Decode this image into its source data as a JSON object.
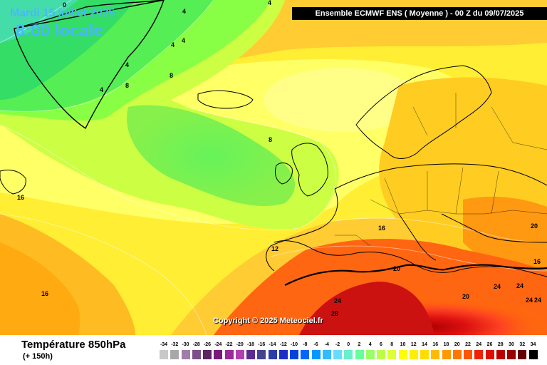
{
  "header": {
    "date": "Mardi 15 juillet 2025",
    "time": "8:00 locale",
    "title": "Ensemble ECMWF ENS  ( Moyenne )  -  00 Z du 09/07/2025"
  },
  "copyright": "Copyright © 2025 Meteociel.fr",
  "footer": {
    "parameter": "Température 850hPa",
    "lead": "(+ 150h)"
  },
  "contour_labels": [
    {
      "value": "0"
    },
    {
      "value": "4"
    },
    {
      "value": "4"
    },
    {
      "value": "4"
    },
    {
      "value": "4"
    },
    {
      "value": "4"
    },
    {
      "value": "4"
    },
    {
      "value": "8"
    },
    {
      "value": "8"
    },
    {
      "value": "8"
    },
    {
      "value": "12"
    },
    {
      "value": "16"
    },
    {
      "value": "16"
    },
    {
      "value": "16"
    },
    {
      "value": "20"
    },
    {
      "value": "20"
    },
    {
      "value": "20"
    },
    {
      "value": "16"
    },
    {
      "value": "24"
    },
    {
      "value": "28"
    },
    {
      "value": "24"
    },
    {
      "value": "24"
    },
    {
      "value": "24"
    },
    {
      "value": "24"
    }
  ],
  "legend": {
    "labels": [
      "-34",
      "-32",
      "-30",
      "-28",
      "-26",
      "-24",
      "-22",
      "-20",
      "-18",
      "-16",
      "-14",
      "-12",
      "-10",
      "-8",
      "-6",
      "-4",
      "-2",
      "0",
      "2",
      "4",
      "6",
      "8",
      "10",
      "12",
      "14",
      "16",
      "18",
      "20",
      "22",
      "24",
      "26",
      "28",
      "30",
      "32",
      "34"
    ],
    "colors": [
      "#c8c8c8",
      "#a8a8a8",
      "#a07ea8",
      "#7c4f86",
      "#5a2560",
      "#7a1a7a",
      "#9a2a9a",
      "#b040b0",
      "#5b2d8e",
      "#44448e",
      "#2b3ea8",
      "#1a2ec8",
      "#0044dd",
      "#0066ff",
      "#0099ff",
      "#33bbff",
      "#66ddff",
      "#66f0cc",
      "#66ff99",
      "#99ff66",
      "#bbff44",
      "#ddff33",
      "#ffff00",
      "#ffee00",
      "#ffdd00",
      "#ffbb00",
      "#ff9900",
      "#ff7700",
      "#ff5500",
      "#ee2200",
      "#dd1100",
      "#bb0000",
      "#990000",
      "#660000",
      "#000000"
    ]
  }
}
